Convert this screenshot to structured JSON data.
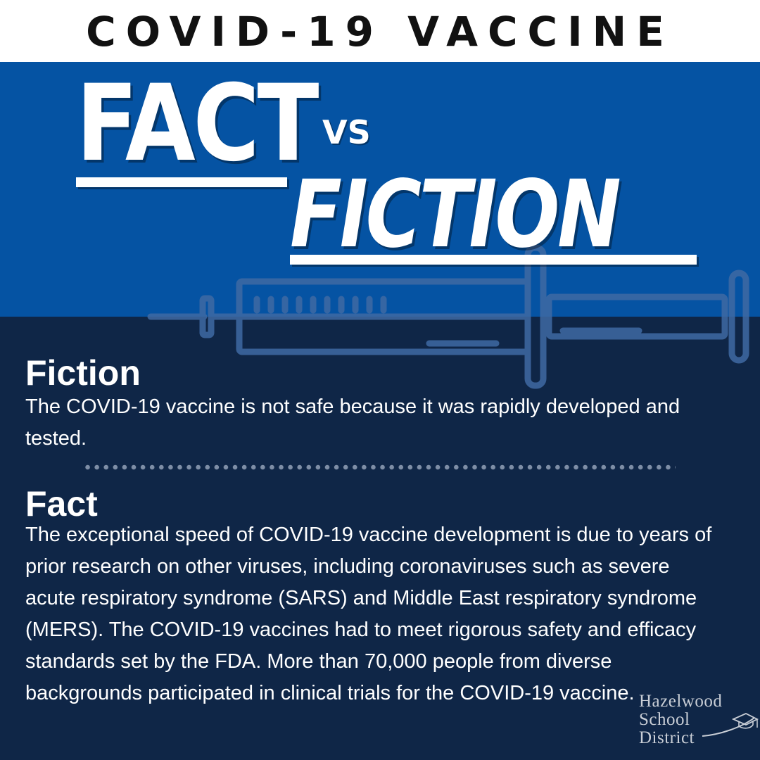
{
  "header": {
    "title": "COVID-19 VACCINE"
  },
  "hero": {
    "fact_word": "FACT",
    "vs_word": "VS",
    "fiction_word": "FICTION"
  },
  "fiction_section": {
    "heading": "Fiction",
    "text": "The COVID-19 vaccine is not safe because it was rapidly developed and tested."
  },
  "fact_section": {
    "heading": "Fact",
    "text": "The exceptional speed of COVID-19 vaccine development is due to years of prior research on other viruses, including coronaviruses such as severe acute respiratory syndrome (SARS) and Middle East respiratory syndrome (MERS). The COVID-19 vaccines had to meet rigorous safety and efficacy standards set by the FDA. More than 70,000 people from diverse backgrounds participated in clinical trials for the COVID-19 vaccine."
  },
  "logo": {
    "line1": "Hazelwood",
    "line2": "School",
    "line3": "District"
  },
  "colors": {
    "top_bar": "#ffffff",
    "blue_band": "#0553a3",
    "navy_background": "#0f2647",
    "text": "#ffffff"
  },
  "icons": [
    "syringe-icon",
    "graduation-cap-icon"
  ]
}
